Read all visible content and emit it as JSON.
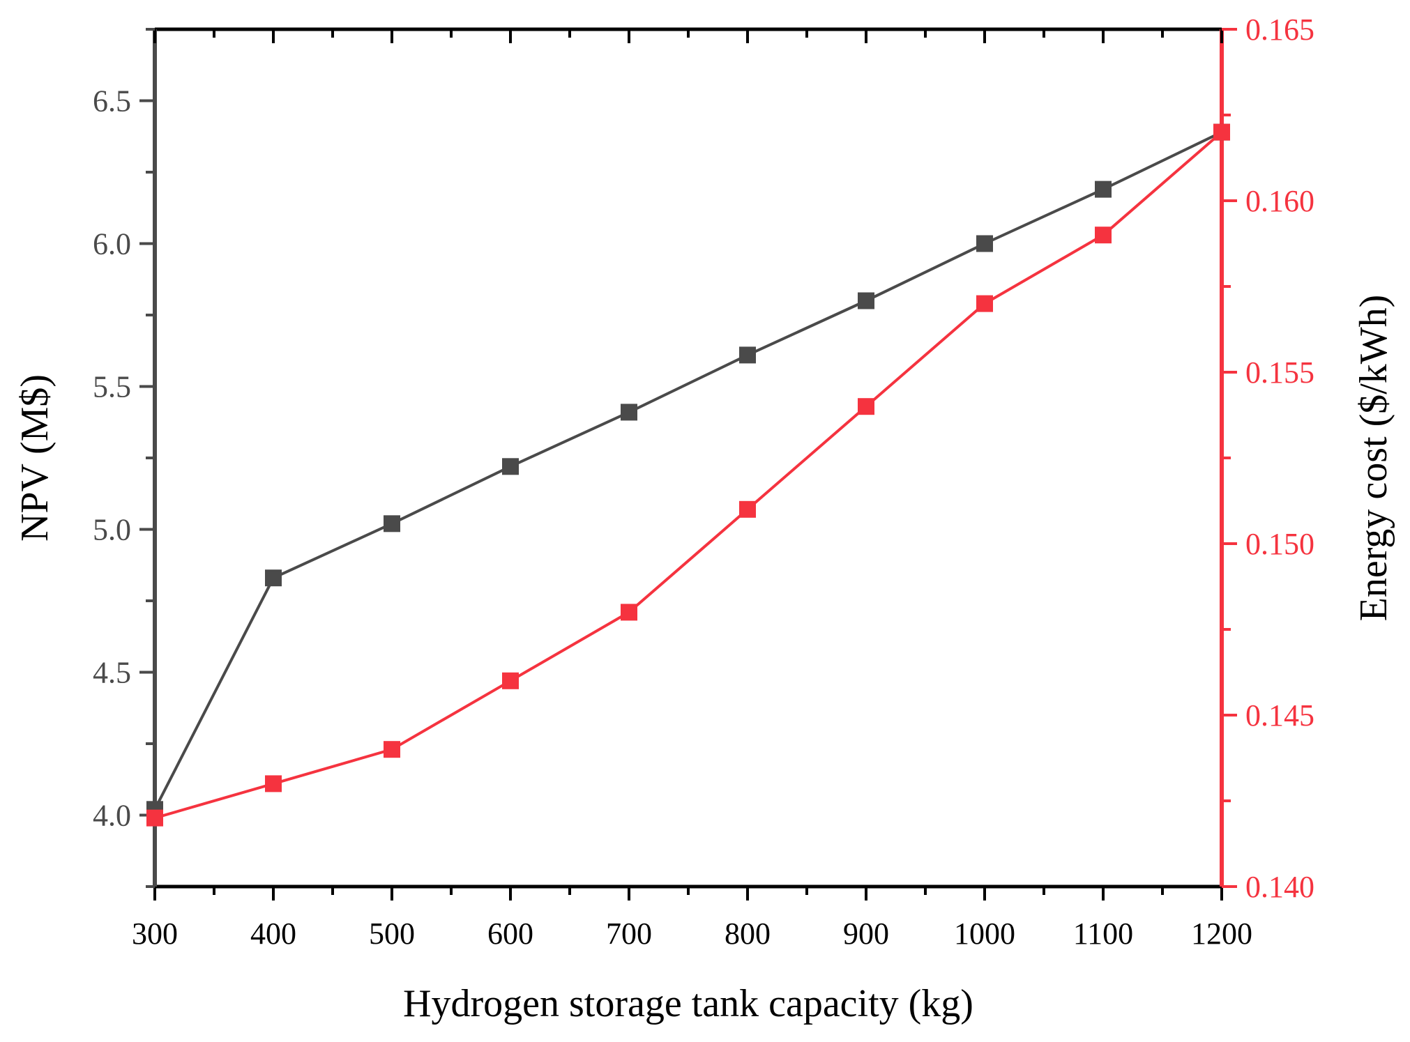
{
  "chart_data": {
    "type": "line",
    "title": "",
    "xlabel": "Hydrogen storage tank capacity (kg)",
    "ylabel": "NPV (M$)",
    "y2label": "Energy cost ($/kWh)",
    "x": [
      300,
      400,
      500,
      600,
      700,
      800,
      900,
      1000,
      1100,
      1200
    ],
    "xlim": [
      300,
      1200
    ],
    "xticks": [
      "300",
      "400",
      "500",
      "600",
      "700",
      "800",
      "900",
      "1000",
      "1100",
      "1200"
    ],
    "ylim": [
      3.75,
      6.75
    ],
    "yticks": [
      "4.0",
      "4.5",
      "5.0",
      "5.5",
      "6.0",
      "6.5"
    ],
    "y2lim": [
      0.14,
      0.165
    ],
    "y2ticks": [
      "0.140",
      "0.145",
      "0.150",
      "0.155",
      "0.160",
      "0.165"
    ],
    "grid": false,
    "series": [
      {
        "name": "NPV",
        "axis": "left",
        "color": "#4a4a4a",
        "marker": "square",
        "values": [
          4.02,
          4.83,
          5.02,
          5.22,
          5.41,
          5.61,
          5.8,
          6.0,
          6.19,
          6.39
        ]
      },
      {
        "name": "Energy cost",
        "axis": "right",
        "color": "#f5333f",
        "marker": "square",
        "values": [
          0.142,
          0.143,
          0.144,
          0.146,
          0.148,
          0.151,
          0.154,
          0.157,
          0.159,
          0.162
        ]
      }
    ],
    "left_axis_color": "#4a4a4a",
    "right_axis_color": "#f5333f"
  }
}
